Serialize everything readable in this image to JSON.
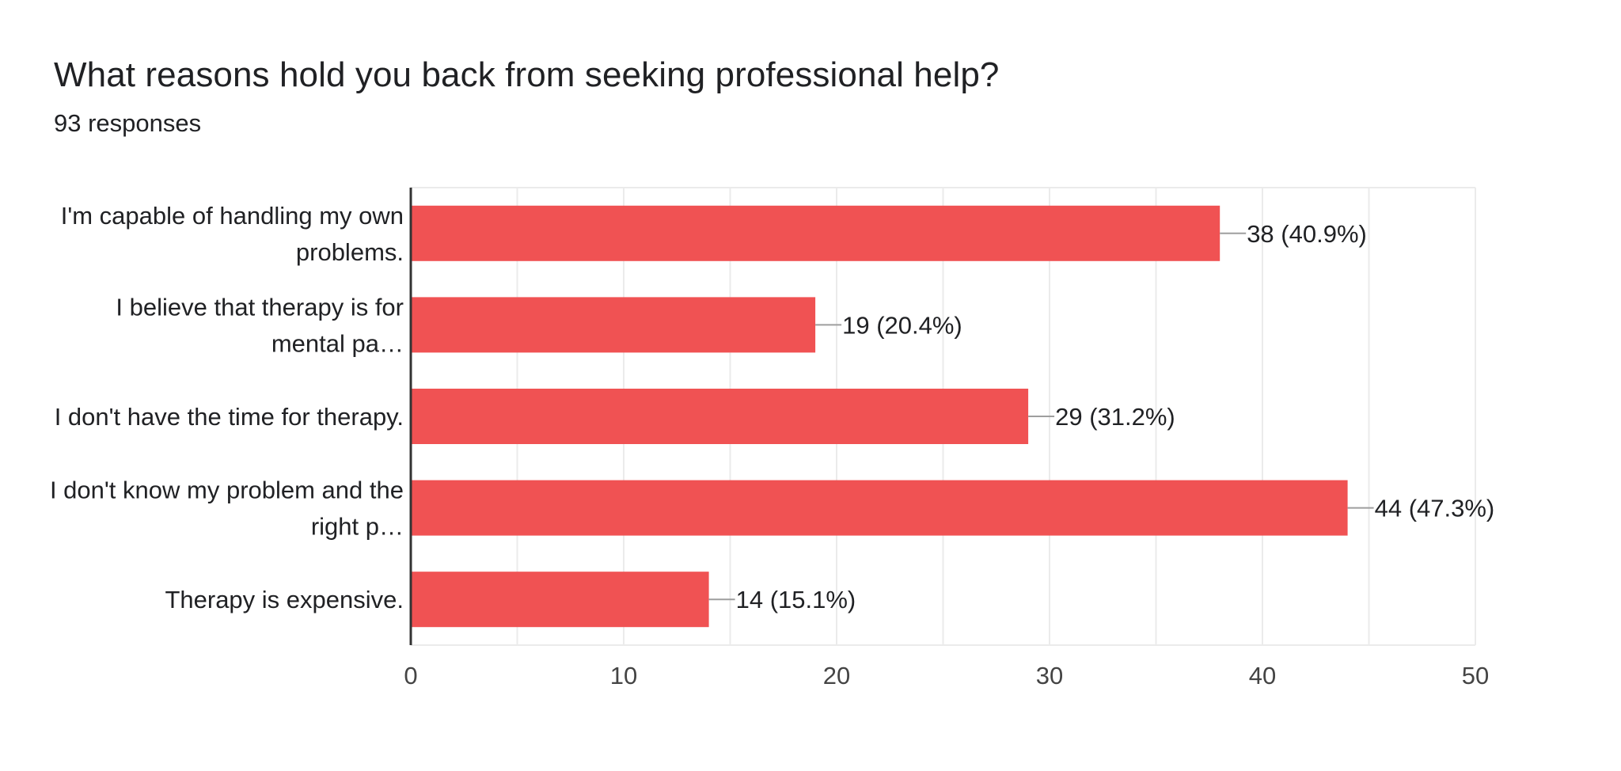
{
  "question": {
    "title": "What reasons hold you back from seeking professional help?",
    "responses_label": "93 responses"
  },
  "colors": {
    "bar": "#f05253",
    "grid": "#ebebeb",
    "axis": "#333333",
    "leader": "#9e9e9e",
    "text": "#202124",
    "tick_text": "#444444"
  },
  "chart_data": {
    "type": "bar",
    "orientation": "horizontal",
    "categories": [
      [
        "I'm capable of handling my own",
        "problems."
      ],
      [
        "I believe that therapy is for",
        "mental pa…"
      ],
      [
        "I don't have the time for therapy."
      ],
      [
        "I don't know my problem and the",
        "right p…"
      ],
      [
        "Therapy is expensive."
      ]
    ],
    "values": [
      38,
      19,
      29,
      44,
      14
    ],
    "data_labels": [
      "38 (40.9%)",
      "19 (20.4%)",
      "29 (31.2%)",
      "44 (47.3%)",
      "14 (15.1%)"
    ],
    "xlim": [
      0,
      50
    ],
    "x_ticks": [
      0,
      10,
      20,
      30,
      40,
      50
    ],
    "minor_grid_step": 5,
    "grid": true,
    "legend": "none"
  }
}
